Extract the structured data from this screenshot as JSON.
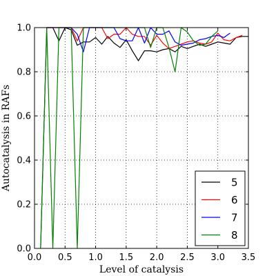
{
  "chart_data": {
    "type": "line",
    "title": "",
    "xlabel": "Level of catalysis",
    "ylabel": "Autocatalysis in RAFs",
    "xlim": [
      0.0,
      3.5
    ],
    "ylim": [
      0.0,
      1.0
    ],
    "xticks": [
      0.0,
      0.5,
      1.0,
      1.5,
      2.0,
      2.5,
      3.0,
      3.5
    ],
    "xtick_labels": [
      "0.0",
      "0.5",
      "1.0",
      "1.5",
      "2.0",
      "2.5",
      "3.0",
      "3.5"
    ],
    "yticks": [
      0.0,
      0.2,
      0.4,
      0.6,
      0.8,
      1.0
    ],
    "ytick_labels": [
      "0.0",
      "0.2",
      "0.4",
      "0.6",
      "0.8",
      "1.0"
    ],
    "grid": true,
    "grid_style": "dotted",
    "legend_position": "lower-right",
    "series": [
      {
        "name": "5",
        "color": "#000000",
        "x": [
          0.1,
          0.2,
          0.3,
          0.4,
          0.5,
          0.6,
          0.7,
          0.8,
          0.9,
          1.0,
          1.1,
          1.2,
          1.3,
          1.4,
          1.5,
          1.6,
          1.7,
          1.8,
          1.9,
          2.0,
          2.1,
          2.2,
          2.3,
          2.4,
          2.5,
          2.6,
          2.7,
          2.8,
          2.9,
          3.0,
          3.1,
          3.2,
          3.3,
          3.4,
          3.5
        ],
        "y": [
          0.0,
          1.0,
          1.0,
          0.94,
          1.0,
          0.99,
          0.92,
          0.935,
          0.935,
          0.955,
          0.925,
          0.96,
          0.93,
          0.91,
          0.945,
          0.895,
          0.85,
          0.895,
          0.895,
          0.89,
          0.9,
          0.905,
          0.89,
          0.915,
          0.905,
          0.915,
          0.925,
          0.915,
          0.925,
          0.935,
          0.93,
          0.925,
          0.955,
          0.96,
          0.96
        ]
      },
      {
        "name": "6",
        "color": "#ff0000",
        "x": [
          0.2,
          0.3,
          0.4,
          0.5,
          0.6,
          0.7,
          0.8,
          0.9,
          1.0,
          1.1,
          1.2,
          1.3,
          1.4,
          1.5,
          1.6,
          1.7,
          1.8,
          1.9,
          2.0,
          2.1,
          2.2,
          2.3,
          2.4,
          2.5,
          2.6,
          2.7,
          2.8,
          2.9,
          3.0,
          3.1,
          3.2,
          3.3,
          3.4
        ],
        "y": [
          1.0,
          1.0,
          1.0,
          1.0,
          1.0,
          0.94,
          1.0,
          1.0,
          1.0,
          1.0,
          0.95,
          0.97,
          0.97,
          1.0,
          0.97,
          0.96,
          0.96,
          0.92,
          0.965,
          0.93,
          0.905,
          0.915,
          0.925,
          0.935,
          0.94,
          0.93,
          0.925,
          0.935,
          0.975,
          0.945,
          0.94,
          0.955,
          0.965
        ]
      },
      {
        "name": "7",
        "color": "#0000ff",
        "x": [
          0.2,
          0.3,
          0.4,
          0.5,
          0.6,
          0.7,
          0.8,
          0.9,
          1.0,
          1.1,
          1.2,
          1.3,
          1.4,
          1.5,
          1.6,
          1.7,
          1.8,
          1.9,
          2.0,
          2.1,
          2.2,
          2.3,
          2.4,
          2.5,
          2.6,
          2.7,
          2.8,
          2.9,
          3.0,
          3.1,
          3.2
        ],
        "y": [
          1.0,
          1.0,
          1.0,
          1.0,
          1.0,
          0.97,
          0.89,
          1.0,
          1.0,
          1.0,
          1.0,
          1.0,
          0.95,
          0.94,
          0.94,
          1.0,
          0.93,
          1.0,
          0.97,
          0.97,
          0.985,
          0.935,
          0.92,
          0.925,
          0.93,
          0.945,
          0.95,
          0.96,
          0.965,
          0.955,
          0.975
        ]
      },
      {
        "name": "8",
        "color": "#008000",
        "x": [
          0.1,
          0.2,
          0.3,
          0.4,
          0.5,
          0.6,
          0.7,
          0.8,
          0.9,
          1.0,
          1.1,
          1.2,
          1.3,
          1.4,
          1.5,
          1.6,
          1.7,
          1.8,
          1.9,
          2.0,
          2.1,
          2.2,
          2.3,
          2.4,
          2.5,
          2.6,
          2.7,
          2.8,
          2.9,
          3.0
        ],
        "y": [
          0.0,
          1.0,
          0.0,
          1.0,
          1.0,
          1.0,
          0.0,
          1.0,
          1.0,
          1.0,
          1.0,
          1.0,
          1.0,
          1.0,
          1.0,
          1.0,
          1.0,
          1.0,
          0.91,
          1.0,
          1.0,
          0.91,
          0.8,
          1.0,
          0.98,
          0.94,
          0.92,
          0.925,
          0.96,
          0.985
        ]
      }
    ]
  }
}
